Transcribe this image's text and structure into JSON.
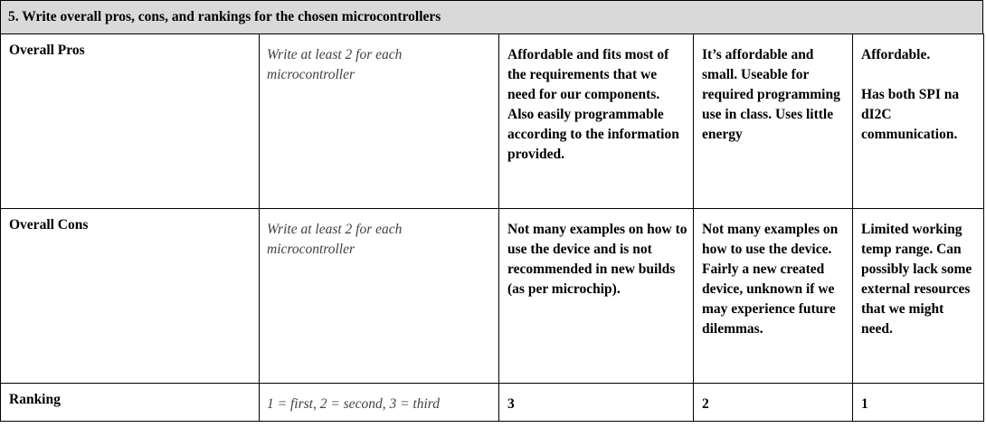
{
  "section": {
    "title": "5. Write overall pros, cons, and rankings for the chosen microcontrollers"
  },
  "rows": [
    {
      "label": "Overall Pros",
      "hint": "Write at least 2 for each microcontroller",
      "answers": [
        "Affordable and fits most of the requirements that we need for our components. Also easily programmable according to the information provided.",
        "It’s affordable and small. Useable for required programming use in class. Uses little energy",
        "Affordable.\n\nHas both SPI na dI2C communication."
      ]
    },
    {
      "label": "Overall Cons",
      "hint": "Write at least 2 for each microcontroller",
      "answers": [
        "Not many examples on how to use the device and is not recommended in new builds (as per microchip).",
        "Not many examples on how to use the device. Fairly a new created device, unknown if we may experience future dilemmas.",
        "Limited working temp range. Can possibly lack some external resources that we might need."
      ]
    },
    {
      "label": "Ranking",
      "hint": "1 = first, 2 = second, 3 = third",
      "answers": [
        "3",
        "2",
        "1"
      ]
    }
  ]
}
